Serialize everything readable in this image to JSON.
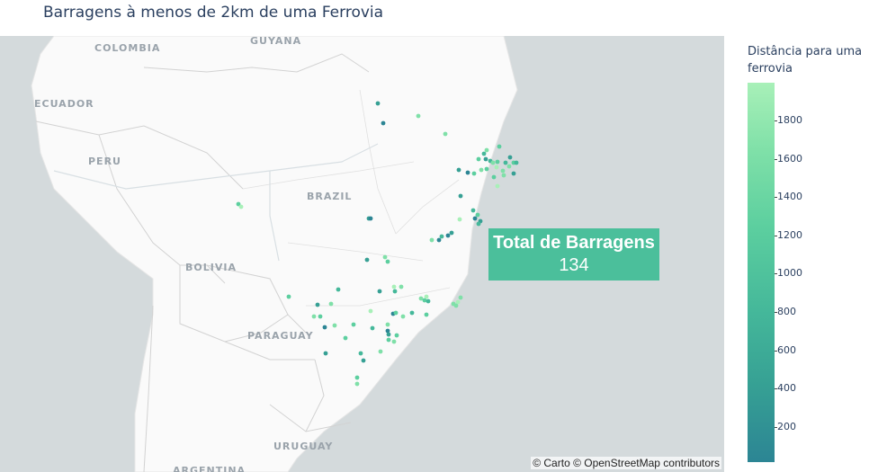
{
  "title": "Barragens à menos de 2km de uma Ferrovia",
  "map": {
    "attribution": "© Carto © OpenStreetMap contributors",
    "country_labels": [
      "COLOMBIA",
      "GUYANA",
      "ECUADOR",
      "PERU",
      "BRAZIL",
      "BOLIVIA",
      "PARAGUAY",
      "URUGUAY",
      "ARGENTINA"
    ]
  },
  "annotation": {
    "title": "Total de Barragens",
    "value": "134",
    "color": "#4bbf9b"
  },
  "legend": {
    "title": "Distância para uma ferrovia",
    "ticks": [
      "1800",
      "1600",
      "1400",
      "1200",
      "1000",
      "800",
      "600",
      "400",
      "200"
    ],
    "colorscale": [
      "#2c8594",
      "#36a094",
      "#45b89a",
      "#5ccf9f",
      "#7fe0a8",
      "#a8f0b8"
    ]
  },
  "chart_data": {
    "type": "scatter",
    "title": "Barragens à menos de 2km de uma Ferrovia",
    "color_axis": {
      "label": "Distância para uma ferrovia",
      "range": [
        0,
        2000
      ]
    },
    "total_points": 134
  }
}
